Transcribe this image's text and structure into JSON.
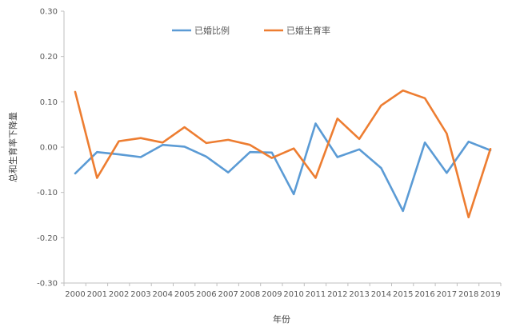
{
  "chart_data": {
    "type": "line",
    "xlabel": "年份",
    "ylabel": "总和生育率下降量",
    "ylim": [
      -0.3,
      0.3
    ],
    "yticks": [
      "0.30",
      "0.20",
      "0.10",
      "0.00",
      "-0.10",
      "-0.20",
      "-0.30"
    ],
    "grid": false,
    "legend_position": "top",
    "categories": [
      "2000",
      "2001",
      "2002",
      "2003",
      "2004",
      "2005",
      "2006",
      "2007",
      "2008",
      "2009",
      "2010",
      "2011",
      "2012",
      "2013",
      "2014",
      "2015",
      "2016",
      "2017",
      "2018",
      "2019"
    ],
    "series": [
      {
        "name": "已婚比例",
        "color": "#5B9BD5",
        "values": [
          -0.058,
          -0.011,
          -0.016,
          -0.022,
          0.005,
          0.001,
          -0.021,
          -0.056,
          -0.011,
          -0.012,
          -0.104,
          0.052,
          -0.022,
          -0.005,
          -0.046,
          -0.141,
          0.01,
          -0.057,
          0.012,
          -0.007
        ]
      },
      {
        "name": "已婚生育率",
        "color": "#ED7D31",
        "values": [
          0.122,
          -0.068,
          0.013,
          0.02,
          0.01,
          0.044,
          0.009,
          0.016,
          0.005,
          -0.024,
          -0.003,
          -0.068,
          0.063,
          0.018,
          0.092,
          0.125,
          0.108,
          0.03,
          -0.155,
          -0.004
        ]
      }
    ]
  }
}
